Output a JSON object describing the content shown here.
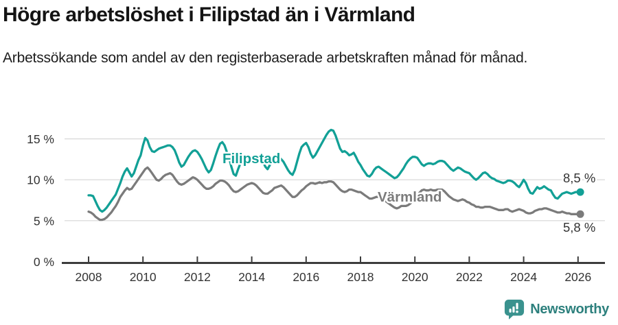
{
  "header": {
    "title": "Högre arbetslöshet i Filipstad än i Värmland",
    "subtitle": "Arbetssökande som andel av den registerbaserade arbetskraften månad för månad."
  },
  "footer": {
    "brand": "Newsworthy"
  },
  "chart_data": {
    "type": "line",
    "title": "Högre arbetslöshet i Filipstad än i Värmland",
    "subtitle": "Arbetssökande som andel av den registerbaserade arbetskraften månad för månad.",
    "unit": "%",
    "frequency": "monthly",
    "x_start_year": 2008,
    "x_end": 2026.08,
    "ylim": [
      0,
      17.5
    ],
    "grid": true,
    "x_ticks": [
      2008,
      2010,
      2012,
      2014,
      2016,
      2018,
      2020,
      2022,
      2024,
      2026
    ],
    "y_ticks": [
      {
        "value": 15,
        "label": "15 %"
      },
      {
        "value": 10,
        "label": "10 %"
      },
      {
        "value": 5,
        "label": "5 %"
      },
      {
        "value": 0,
        "label": "0 %"
      }
    ],
    "series": [
      {
        "name": "Filipstad",
        "color": "#12a096",
        "end_label": "8,5 %",
        "end_value": 8.5,
        "values": [
          8.1,
          8.1,
          8.0,
          7.4,
          6.8,
          6.3,
          6.1,
          6.3,
          6.6,
          7.0,
          7.4,
          7.8,
          8.2,
          8.9,
          9.6,
          10.4,
          11.0,
          11.4,
          10.9,
          10.4,
          10.8,
          11.6,
          12.4,
          13.0,
          14.2,
          15.1,
          14.8,
          14.0,
          13.5,
          13.4,
          13.6,
          13.8,
          13.9,
          14.0,
          14.1,
          14.2,
          14.2,
          14.0,
          13.6,
          12.9,
          12.1,
          11.6,
          11.8,
          12.3,
          12.8,
          13.2,
          13.5,
          13.6,
          13.4,
          13.0,
          12.5,
          11.9,
          11.3,
          10.9,
          11.2,
          12.0,
          12.9,
          13.7,
          14.4,
          14.6,
          14.2,
          13.4,
          12.7,
          11.6,
          10.7,
          10.5,
          11.3,
          12.0,
          12.2,
          12.1,
          12.3,
          12.4,
          12.4,
          12.2,
          12.1,
          12.4,
          12.6,
          12.2,
          11.6,
          11.3,
          11.8,
          12.3,
          12.7,
          12.9,
          12.8,
          12.5,
          12.2,
          11.7,
          11.2,
          10.8,
          10.6,
          11.2,
          12.2,
          13.2,
          14.0,
          14.3,
          14.5,
          14.0,
          13.2,
          12.7,
          13.0,
          13.5,
          14.0,
          14.5,
          15.0,
          15.5,
          15.9,
          16.1,
          16.0,
          15.4,
          14.6,
          13.8,
          13.4,
          13.5,
          13.3,
          13.0,
          13.1,
          13.3,
          12.8,
          12.2,
          11.8,
          11.3,
          10.9,
          10.5,
          10.4,
          10.7,
          11.2,
          11.5,
          11.6,
          11.4,
          11.2,
          11.0,
          10.8,
          10.6,
          10.4,
          10.2,
          10.3,
          10.6,
          11.0,
          11.4,
          11.9,
          12.3,
          12.6,
          12.8,
          12.8,
          12.7,
          12.3,
          11.9,
          11.7,
          11.9,
          12.0,
          12.0,
          11.9,
          12.0,
          12.2,
          12.3,
          12.3,
          12.2,
          11.9,
          11.6,
          11.3,
          11.1,
          11.3,
          11.5,
          11.4,
          11.2,
          11.0,
          10.9,
          10.8,
          10.5,
          10.2,
          10.0,
          10.2,
          10.5,
          10.8,
          10.9,
          10.7,
          10.4,
          10.2,
          10.1,
          9.9,
          9.8,
          9.7,
          9.6,
          9.7,
          9.9,
          9.9,
          9.8,
          9.6,
          9.3,
          9.1,
          9.5,
          10.0,
          9.6,
          8.9,
          8.4,
          8.3,
          8.7,
          9.1,
          8.9,
          9.0,
          9.2,
          9.0,
          8.8,
          8.7,
          8.2,
          7.8,
          7.7,
          8.0,
          8.3,
          8.4,
          8.5,
          8.4,
          8.3,
          8.4,
          8.5,
          8.5,
          8.5
        ]
      },
      {
        "name": "Värmland",
        "color": "#7b7b7b",
        "end_label": "5,8 %",
        "end_value": 5.8,
        "values": [
          6.1,
          6.0,
          5.8,
          5.5,
          5.3,
          5.1,
          5.1,
          5.2,
          5.4,
          5.7,
          6.0,
          6.4,
          6.8,
          7.3,
          7.9,
          8.3,
          8.7,
          9.0,
          8.8,
          8.9,
          9.3,
          9.7,
          10.1,
          10.5,
          10.9,
          11.3,
          11.5,
          11.2,
          10.8,
          10.4,
          10.0,
          9.9,
          10.1,
          10.4,
          10.6,
          10.7,
          10.8,
          10.6,
          10.2,
          9.8,
          9.5,
          9.4,
          9.5,
          9.7,
          9.9,
          10.1,
          10.3,
          10.2,
          10.0,
          9.7,
          9.4,
          9.1,
          8.9,
          8.9,
          9.0,
          9.2,
          9.5,
          9.7,
          9.9,
          9.9,
          9.8,
          9.6,
          9.3,
          8.9,
          8.6,
          8.5,
          8.6,
          8.8,
          9.0,
          9.2,
          9.4,
          9.5,
          9.6,
          9.5,
          9.3,
          9.0,
          8.7,
          8.4,
          8.3,
          8.3,
          8.5,
          8.7,
          9.0,
          9.1,
          9.2,
          9.3,
          9.1,
          8.8,
          8.5,
          8.2,
          7.9,
          7.9,
          8.1,
          8.4,
          8.7,
          8.9,
          9.2,
          9.4,
          9.6,
          9.6,
          9.5,
          9.6,
          9.7,
          9.6,
          9.7,
          9.7,
          9.8,
          9.8,
          9.7,
          9.4,
          9.1,
          8.8,
          8.6,
          8.5,
          8.6,
          8.8,
          8.8,
          8.7,
          8.6,
          8.5,
          8.5,
          8.3,
          8.1,
          7.9,
          7.7,
          7.7,
          7.8,
          7.9,
          7.9,
          7.8,
          7.6,
          7.4,
          7.2,
          7.0,
          6.8,
          6.6,
          6.5,
          6.6,
          6.8,
          6.8,
          6.8,
          6.9,
          7.1,
          7.4,
          7.7,
          8.0,
          8.4,
          8.7,
          8.8,
          8.7,
          8.7,
          8.8,
          8.7,
          8.7,
          8.8,
          8.8,
          8.8,
          8.6,
          8.3,
          8.0,
          7.8,
          7.6,
          7.5,
          7.4,
          7.5,
          7.6,
          7.5,
          7.3,
          7.2,
          7.0,
          6.9,
          6.7,
          6.7,
          6.6,
          6.6,
          6.7,
          6.7,
          6.7,
          6.6,
          6.5,
          6.4,
          6.3,
          6.3,
          6.3,
          6.4,
          6.4,
          6.2,
          6.1,
          6.2,
          6.3,
          6.4,
          6.3,
          6.2,
          6.0,
          5.9,
          5.9,
          6.0,
          6.2,
          6.3,
          6.4,
          6.4,
          6.5,
          6.5,
          6.4,
          6.3,
          6.2,
          6.1,
          6.0,
          6.0,
          6.1,
          6.0,
          5.9,
          5.9,
          5.8,
          5.8,
          5.8,
          5.8,
          5.8
        ]
      }
    ]
  }
}
